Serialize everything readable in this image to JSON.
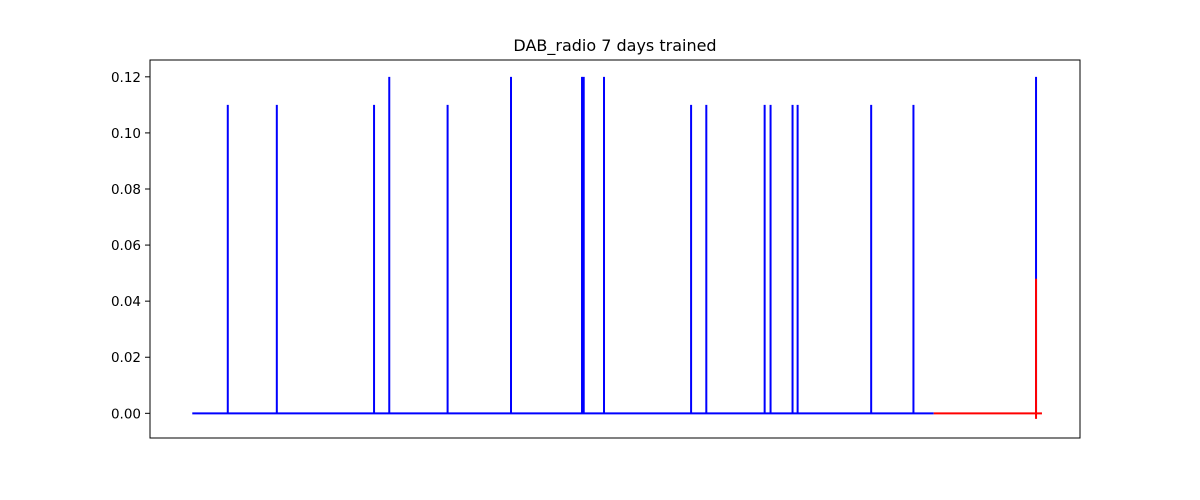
{
  "chart_data": {
    "type": "line",
    "title": "DAB_radio 7 days trained",
    "xlabel": "",
    "ylabel": "",
    "ylim": [
      -0.0088,
      0.126
    ],
    "xlim": [
      -0.05,
      1.05
    ],
    "y_ticks": [
      0.0,
      0.02,
      0.04,
      0.06,
      0.08,
      0.1,
      0.12
    ],
    "y_tick_labels": [
      "0.00",
      "0.02",
      "0.04",
      "0.06",
      "0.08",
      "0.10",
      "0.12"
    ],
    "x_ticks_visible": false,
    "grid": false,
    "series": [
      {
        "color": "#0000ff",
        "baseline": 0.0,
        "x_range": [
          0.0,
          0.877
        ],
        "spikes": [
          {
            "x": 0.042,
            "y": 0.11
          },
          {
            "x": 0.1,
            "y": 0.11
          },
          {
            "x": 0.215,
            "y": 0.11
          },
          {
            "x": 0.233,
            "y": 0.12
          },
          {
            "x": 0.302,
            "y": 0.11
          },
          {
            "x": 0.377,
            "y": 0.12
          },
          {
            "x": 0.461,
            "y": 0.12
          },
          {
            "x": 0.463,
            "y": 0.12
          },
          {
            "x": 0.487,
            "y": 0.12
          },
          {
            "x": 0.59,
            "y": 0.11
          },
          {
            "x": 0.608,
            "y": 0.11
          },
          {
            "x": 0.677,
            "y": 0.11
          },
          {
            "x": 0.684,
            "y": 0.11
          },
          {
            "x": 0.71,
            "y": 0.11
          },
          {
            "x": 0.716,
            "y": 0.11
          },
          {
            "x": 0.803,
            "y": 0.11
          },
          {
            "x": 0.853,
            "y": 0.11
          },
          {
            "x": 0.998,
            "y": 0.12
          }
        ]
      },
      {
        "color": "#ff0000",
        "baseline": 0.0,
        "x_range": [
          0.877,
          1.005
        ],
        "spikes": [
          {
            "x": 0.998,
            "y": 0.048,
            "min": -0.002
          }
        ]
      }
    ]
  }
}
